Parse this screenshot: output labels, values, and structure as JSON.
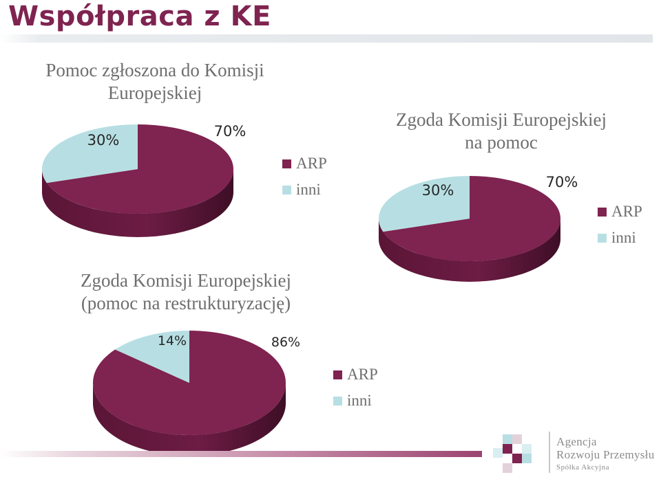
{
  "slide": {
    "title": "Współpraca z KE"
  },
  "logo": {
    "line1": "Agencja",
    "line2": "Rozwoju Przemysłu",
    "line3": "Spółka Akcyjna"
  },
  "colors": {
    "brand": "#7f2350",
    "arp": "#7f2350",
    "inni": "#b7dfe3"
  },
  "chart_data": [
    {
      "type": "pie",
      "title": "Pomoc zgłoszona do Komisji\nEuropejskiej",
      "categories": [
        "ARP",
        "inni"
      ],
      "values": [
        70,
        30
      ],
      "labels": [
        "70%",
        "30%"
      ],
      "legend": "right"
    },
    {
      "type": "pie",
      "title": "Zgoda Komisji Europejskiej\nna pomoc",
      "categories": [
        "ARP",
        "inni"
      ],
      "values": [
        70,
        30
      ],
      "labels": [
        "70%",
        "30%"
      ],
      "legend": "right"
    },
    {
      "type": "pie",
      "title": "Zgoda Komisji Europejskiej\n(pomoc na restrukturyzację)",
      "categories": [
        "ARP",
        "inni"
      ],
      "values": [
        86,
        14
      ],
      "labels": [
        "86%",
        "14%"
      ],
      "legend": "right"
    }
  ]
}
